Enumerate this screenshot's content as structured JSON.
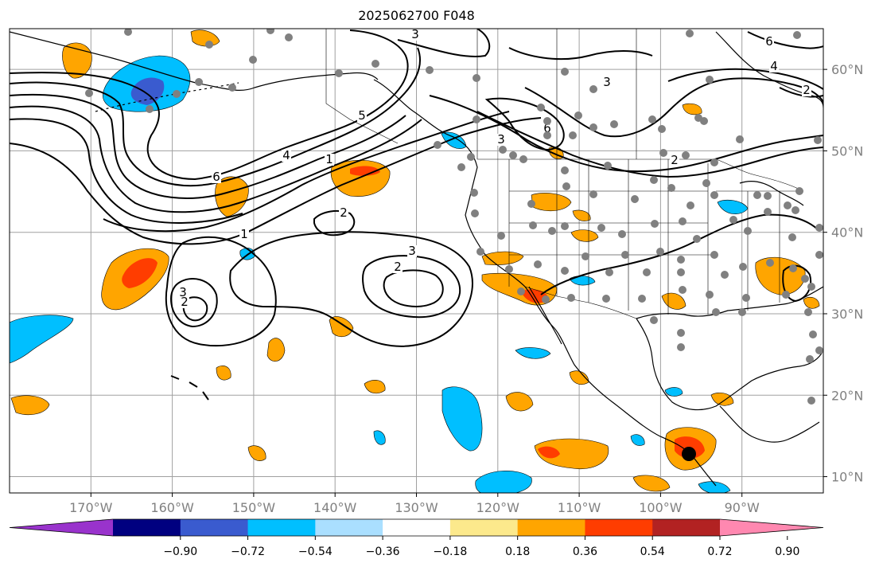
{
  "title": "2025062700 F048",
  "map": {
    "lon_range": [
      -180,
      -80
    ],
    "lat_range": [
      8,
      65
    ],
    "lon_ticks": [
      "170°W",
      "160°W",
      "150°W",
      "140°W",
      "130°W",
      "120°W",
      "110°W",
      "100°W",
      "90°W"
    ],
    "lat_ticks": [
      "60°N",
      "50°N",
      "40°N",
      "30°N",
      "20°N",
      "10°N"
    ],
    "grid": true,
    "contour_labels": [
      "3",
      "6",
      "4",
      "2",
      "3",
      "6",
      "5",
      "4",
      "1",
      "6",
      "2",
      "1",
      "2",
      "3",
      "2",
      "3",
      "2",
      "3"
    ],
    "marker": {
      "lon": -97,
      "lat": 12.8,
      "color": "#000000"
    },
    "stations_color": "#808080"
  },
  "colorbar": {
    "colors": [
      "#9933cc",
      "#000080",
      "#3a5bcf",
      "#00bfff",
      "#aadfff",
      "#ffffff",
      "#fce98c",
      "#ffa500",
      "#ff3d00",
      "#b22222",
      "#ff88b0"
    ],
    "ticks": [
      "−0.90",
      "−0.72",
      "−0.54",
      "−0.36",
      "−0.18",
      "0.18",
      "0.36",
      "0.54",
      "0.72",
      "0.90"
    ],
    "extend": "both"
  }
}
